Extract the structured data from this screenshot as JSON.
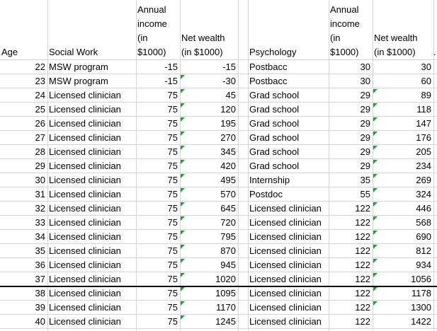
{
  "headers": {
    "age": "Age",
    "social_work": "Social Work",
    "sw_income": "Annual\nincome\n(in\n$1000)",
    "sw_wealth": "Net wealth\n(in $1000)",
    "psychology": "Psychology",
    "psy_income": "Annual\nincome\n(in\n$1000)",
    "psy_wealth": "Net wealth\n(in $1000)",
    "trailing": "."
  },
  "rows": [
    {
      "age": "22",
      "sw": "MSW program",
      "sw_income": "-15",
      "sw_wealth": "-15",
      "psy": "Postbacc",
      "psy_income": "30",
      "psy_wealth": "30",
      "sw_flag": false,
      "psy_flag": false
    },
    {
      "age": "23",
      "sw": "MSW program",
      "sw_income": "-15",
      "sw_wealth": "-30",
      "psy": "Postbacc",
      "psy_income": "30",
      "psy_wealth": "60",
      "sw_flag": true,
      "psy_flag": false
    },
    {
      "age": "24",
      "sw": "Licensed clinician",
      "sw_income": "75",
      "sw_wealth": "45",
      "psy": "Grad school",
      "psy_income": "29",
      "psy_wealth": "89",
      "sw_flag": true,
      "psy_flag": true
    },
    {
      "age": "25",
      "sw": "Licensed clinician",
      "sw_income": "75",
      "sw_wealth": "120",
      "psy": "Grad school",
      "psy_income": "29",
      "psy_wealth": "118",
      "sw_flag": true,
      "psy_flag": true
    },
    {
      "age": "26",
      "sw": "Licensed clinician",
      "sw_income": "75",
      "sw_wealth": "195",
      "psy": "Grad school",
      "psy_income": "29",
      "psy_wealth": "147",
      "sw_flag": true,
      "psy_flag": true
    },
    {
      "age": "27",
      "sw": "Licensed clinician",
      "sw_income": "75",
      "sw_wealth": "270",
      "psy": "Grad school",
      "psy_income": "29",
      "psy_wealth": "176",
      "sw_flag": true,
      "psy_flag": true
    },
    {
      "age": "28",
      "sw": "Licensed clinician",
      "sw_income": "75",
      "sw_wealth": "345",
      "psy": "Grad school",
      "psy_income": "29",
      "psy_wealth": "205",
      "sw_flag": true,
      "psy_flag": true
    },
    {
      "age": "29",
      "sw": "Licensed clinician",
      "sw_income": "75",
      "sw_wealth": "420",
      "psy": "Grad school",
      "psy_income": "29",
      "psy_wealth": "234",
      "sw_flag": true,
      "psy_flag": true
    },
    {
      "age": "30",
      "sw": "Licensed clinician",
      "sw_income": "75",
      "sw_wealth": "495",
      "psy": "Internship",
      "psy_income": "35",
      "psy_wealth": "269",
      "sw_flag": true,
      "psy_flag": true
    },
    {
      "age": "31",
      "sw": "Licensed clinician",
      "sw_income": "75",
      "sw_wealth": "570",
      "psy": "Postdoc",
      "psy_income": "55",
      "psy_wealth": "324",
      "sw_flag": true,
      "psy_flag": true
    },
    {
      "age": "32",
      "sw": "Licensed clinician",
      "sw_income": "75",
      "sw_wealth": "645",
      "psy": "Licensed clinician",
      "psy_income": "122",
      "psy_wealth": "446",
      "sw_flag": true,
      "psy_flag": true
    },
    {
      "age": "33",
      "sw": "Licensed clinician",
      "sw_income": "75",
      "sw_wealth": "720",
      "psy": "Licensed clinician",
      "psy_income": "122",
      "psy_wealth": "568",
      "sw_flag": true,
      "psy_flag": true
    },
    {
      "age": "34",
      "sw": "Licensed clinician",
      "sw_income": "75",
      "sw_wealth": "795",
      "psy": "Licensed clinician",
      "psy_income": "122",
      "psy_wealth": "690",
      "sw_flag": true,
      "psy_flag": true
    },
    {
      "age": "35",
      "sw": "Licensed clinician",
      "sw_income": "75",
      "sw_wealth": "870",
      "psy": "Licensed clinician",
      "psy_income": "122",
      "psy_wealth": "812",
      "sw_flag": true,
      "psy_flag": true
    },
    {
      "age": "36",
      "sw": "Licensed clinician",
      "sw_income": "75",
      "sw_wealth": "945",
      "psy": "Licensed clinician",
      "psy_income": "122",
      "psy_wealth": "934",
      "sw_flag": true,
      "psy_flag": true
    },
    {
      "age": "37",
      "sw": "Licensed clinician",
      "sw_income": "75",
      "sw_wealth": "1020",
      "psy": "Licensed clinician",
      "psy_income": "122",
      "psy_wealth": "1056",
      "sw_flag": true,
      "psy_flag": true
    },
    {
      "age": "38",
      "sw": "Licensed clinician",
      "sw_income": "75",
      "sw_wealth": "1095",
      "psy": "Licensed clinician",
      "psy_income": "122",
      "psy_wealth": "1178",
      "sw_flag": true,
      "psy_flag": true
    },
    {
      "age": "39",
      "sw": "Licensed clinician",
      "sw_income": "75",
      "sw_wealth": "1170",
      "psy": "Licensed clinician",
      "psy_income": "122",
      "psy_wealth": "1300",
      "sw_flag": true,
      "psy_flag": true
    },
    {
      "age": "40",
      "sw": "Licensed clinician",
      "sw_income": "75",
      "sw_wealth": "1245",
      "psy": "Licensed clinician",
      "psy_income": "122",
      "psy_wealth": "1422",
      "sw_flag": true,
      "psy_flag": false
    }
  ],
  "colors": {
    "gridline": "#d4d4d4",
    "error_indicator": "#1e9e3a",
    "thick_border": "#000000"
  }
}
